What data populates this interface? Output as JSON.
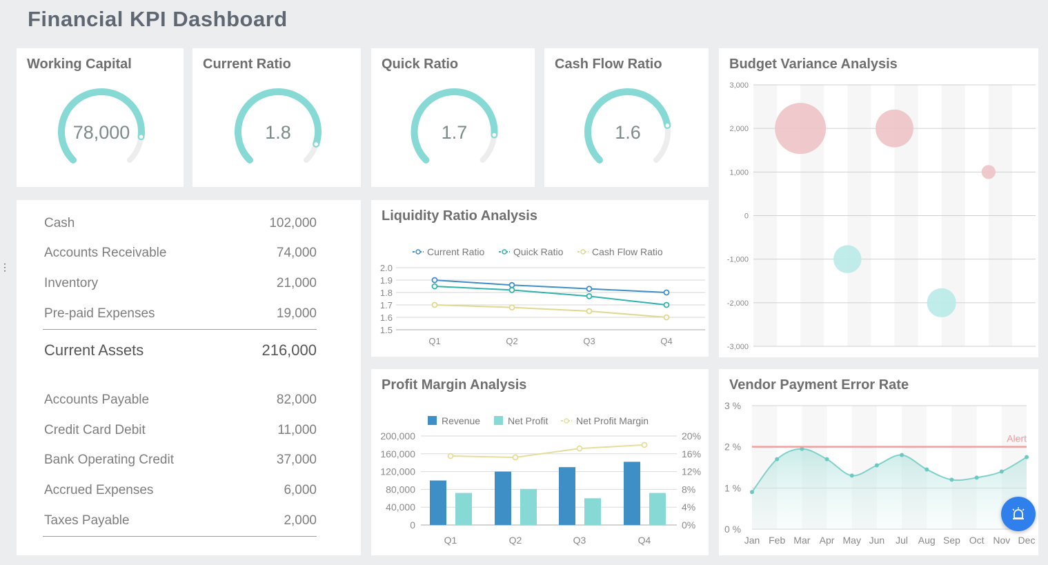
{
  "page": {
    "title": "Financial KPI Dashboard"
  },
  "gauges": [
    {
      "title": "Working Capital",
      "value_text": "78,000",
      "fraction": 0.86
    },
    {
      "title": "Current Ratio",
      "value_text": "1.8",
      "fraction": 0.9
    },
    {
      "title": "Quick Ratio",
      "value_text": "1.7",
      "fraction": 0.85
    },
    {
      "title": "Cash Flow Ratio",
      "value_text": "1.6",
      "fraction": 0.8
    }
  ],
  "balance": {
    "assets": [
      {
        "label": "Cash",
        "value": "102,000"
      },
      {
        "label": "Accounts Receivable",
        "value": "74,000"
      },
      {
        "label": "Inventory",
        "value": "21,000"
      },
      {
        "label": "Pre-paid Expenses",
        "value": "19,000"
      }
    ],
    "assets_total": {
      "label": "Current Assets",
      "value": "216,000"
    },
    "liabilities": [
      {
        "label": "Accounts Payable",
        "value": "82,000"
      },
      {
        "label": "Credit Card Debit",
        "value": "11,000"
      },
      {
        "label": "Bank Operating Credit",
        "value": "37,000"
      },
      {
        "label": "Accrued Expenses",
        "value": "6,000"
      },
      {
        "label": "Taxes Payable",
        "value": "2,000"
      }
    ]
  },
  "colors": {
    "teal": "#86d9d4",
    "teal_dark": "#2fb3ac",
    "blue": "#3d8fc6",
    "yellow": "#e6dd9a",
    "pink": "#eec3c6",
    "alert": "#f0a0a0",
    "fab": "#2f80ed"
  },
  "chart_data": [
    {
      "id": "liquidity",
      "type": "line",
      "title": "Liquidity Ratio Analysis",
      "categories": [
        "Q1",
        "Q2",
        "Q3",
        "Q4"
      ],
      "series": [
        {
          "name": "Current Ratio",
          "values": [
            1.9,
            1.86,
            1.83,
            1.8
          ],
          "color": "#3d8fc6"
        },
        {
          "name": "Quick Ratio",
          "values": [
            1.85,
            1.82,
            1.77,
            1.7
          ],
          "color": "#2fb3ac"
        },
        {
          "name": "Cash Flow Ratio",
          "values": [
            1.7,
            1.68,
            1.65,
            1.6
          ],
          "color": "#e0d88e"
        }
      ],
      "ylim": [
        1.5,
        2.0
      ],
      "yticks": [
        "1.5",
        "1.6",
        "1.7",
        "1.8",
        "1.9",
        "2.0"
      ]
    },
    {
      "id": "profit",
      "type": "bar",
      "title": "Profit Margin Analysis",
      "categories": [
        "Q1",
        "Q2",
        "Q3",
        "Q4"
      ],
      "series": [
        {
          "name": "Revenue",
          "values": [
            100000,
            120000,
            130000,
            142000
          ],
          "color": "#3d8fc6"
        },
        {
          "name": "Net Profit",
          "values": [
            72000,
            81000,
            60000,
            72000
          ],
          "color": "#86d9d4"
        },
        {
          "name": "Net Profit Margin",
          "values": [
            15.5,
            15.2,
            17.2,
            18
          ],
          "color": "#e6dd9a",
          "axis": "right"
        }
      ],
      "ylim": [
        0,
        200000
      ],
      "yticks": [
        "0",
        "40,000",
        "80,000",
        "120,000",
        "160,000",
        "200,000"
      ],
      "y2lim": [
        0,
        20
      ],
      "y2ticks": [
        "0%",
        "4%",
        "8%",
        "12%",
        "16%",
        "20%"
      ]
    },
    {
      "id": "budget",
      "type": "scatter",
      "title": "Budget Variance Analysis",
      "points": [
        {
          "x": 1,
          "y": 2000,
          "size": 2000
        },
        {
          "x": 2,
          "y": -1000,
          "size": 600
        },
        {
          "x": 3,
          "y": 2000,
          "size": 1100
        },
        {
          "x": 4,
          "y": -2000,
          "size": 650
        },
        {
          "x": 5,
          "y": 1000,
          "size": 150
        }
      ],
      "xlim": [
        0,
        6
      ],
      "ylim": [
        -3000,
        3000
      ],
      "yticks": [
        "-3,000",
        "-2,000",
        "-1,000",
        "0",
        "1,000",
        "2,000",
        "3,000"
      ]
    },
    {
      "id": "vendor",
      "type": "area",
      "title": "Vendor Payment Error Rate",
      "categories": [
        "Jan",
        "Feb",
        "Mar",
        "Apr",
        "May",
        "Jun",
        "Jul",
        "Aug",
        "Sep",
        "Oct",
        "Nov",
        "Dec"
      ],
      "values": [
        0.9,
        1.7,
        1.95,
        1.7,
        1.3,
        1.55,
        1.8,
        1.45,
        1.2,
        1.25,
        1.4,
        1.75
      ],
      "ylim": [
        0,
        3
      ],
      "yticks": [
        "0 %",
        "1 %",
        "2 %",
        "3 %"
      ],
      "alert_value": 2,
      "alert_label": "Alert"
    }
  ]
}
